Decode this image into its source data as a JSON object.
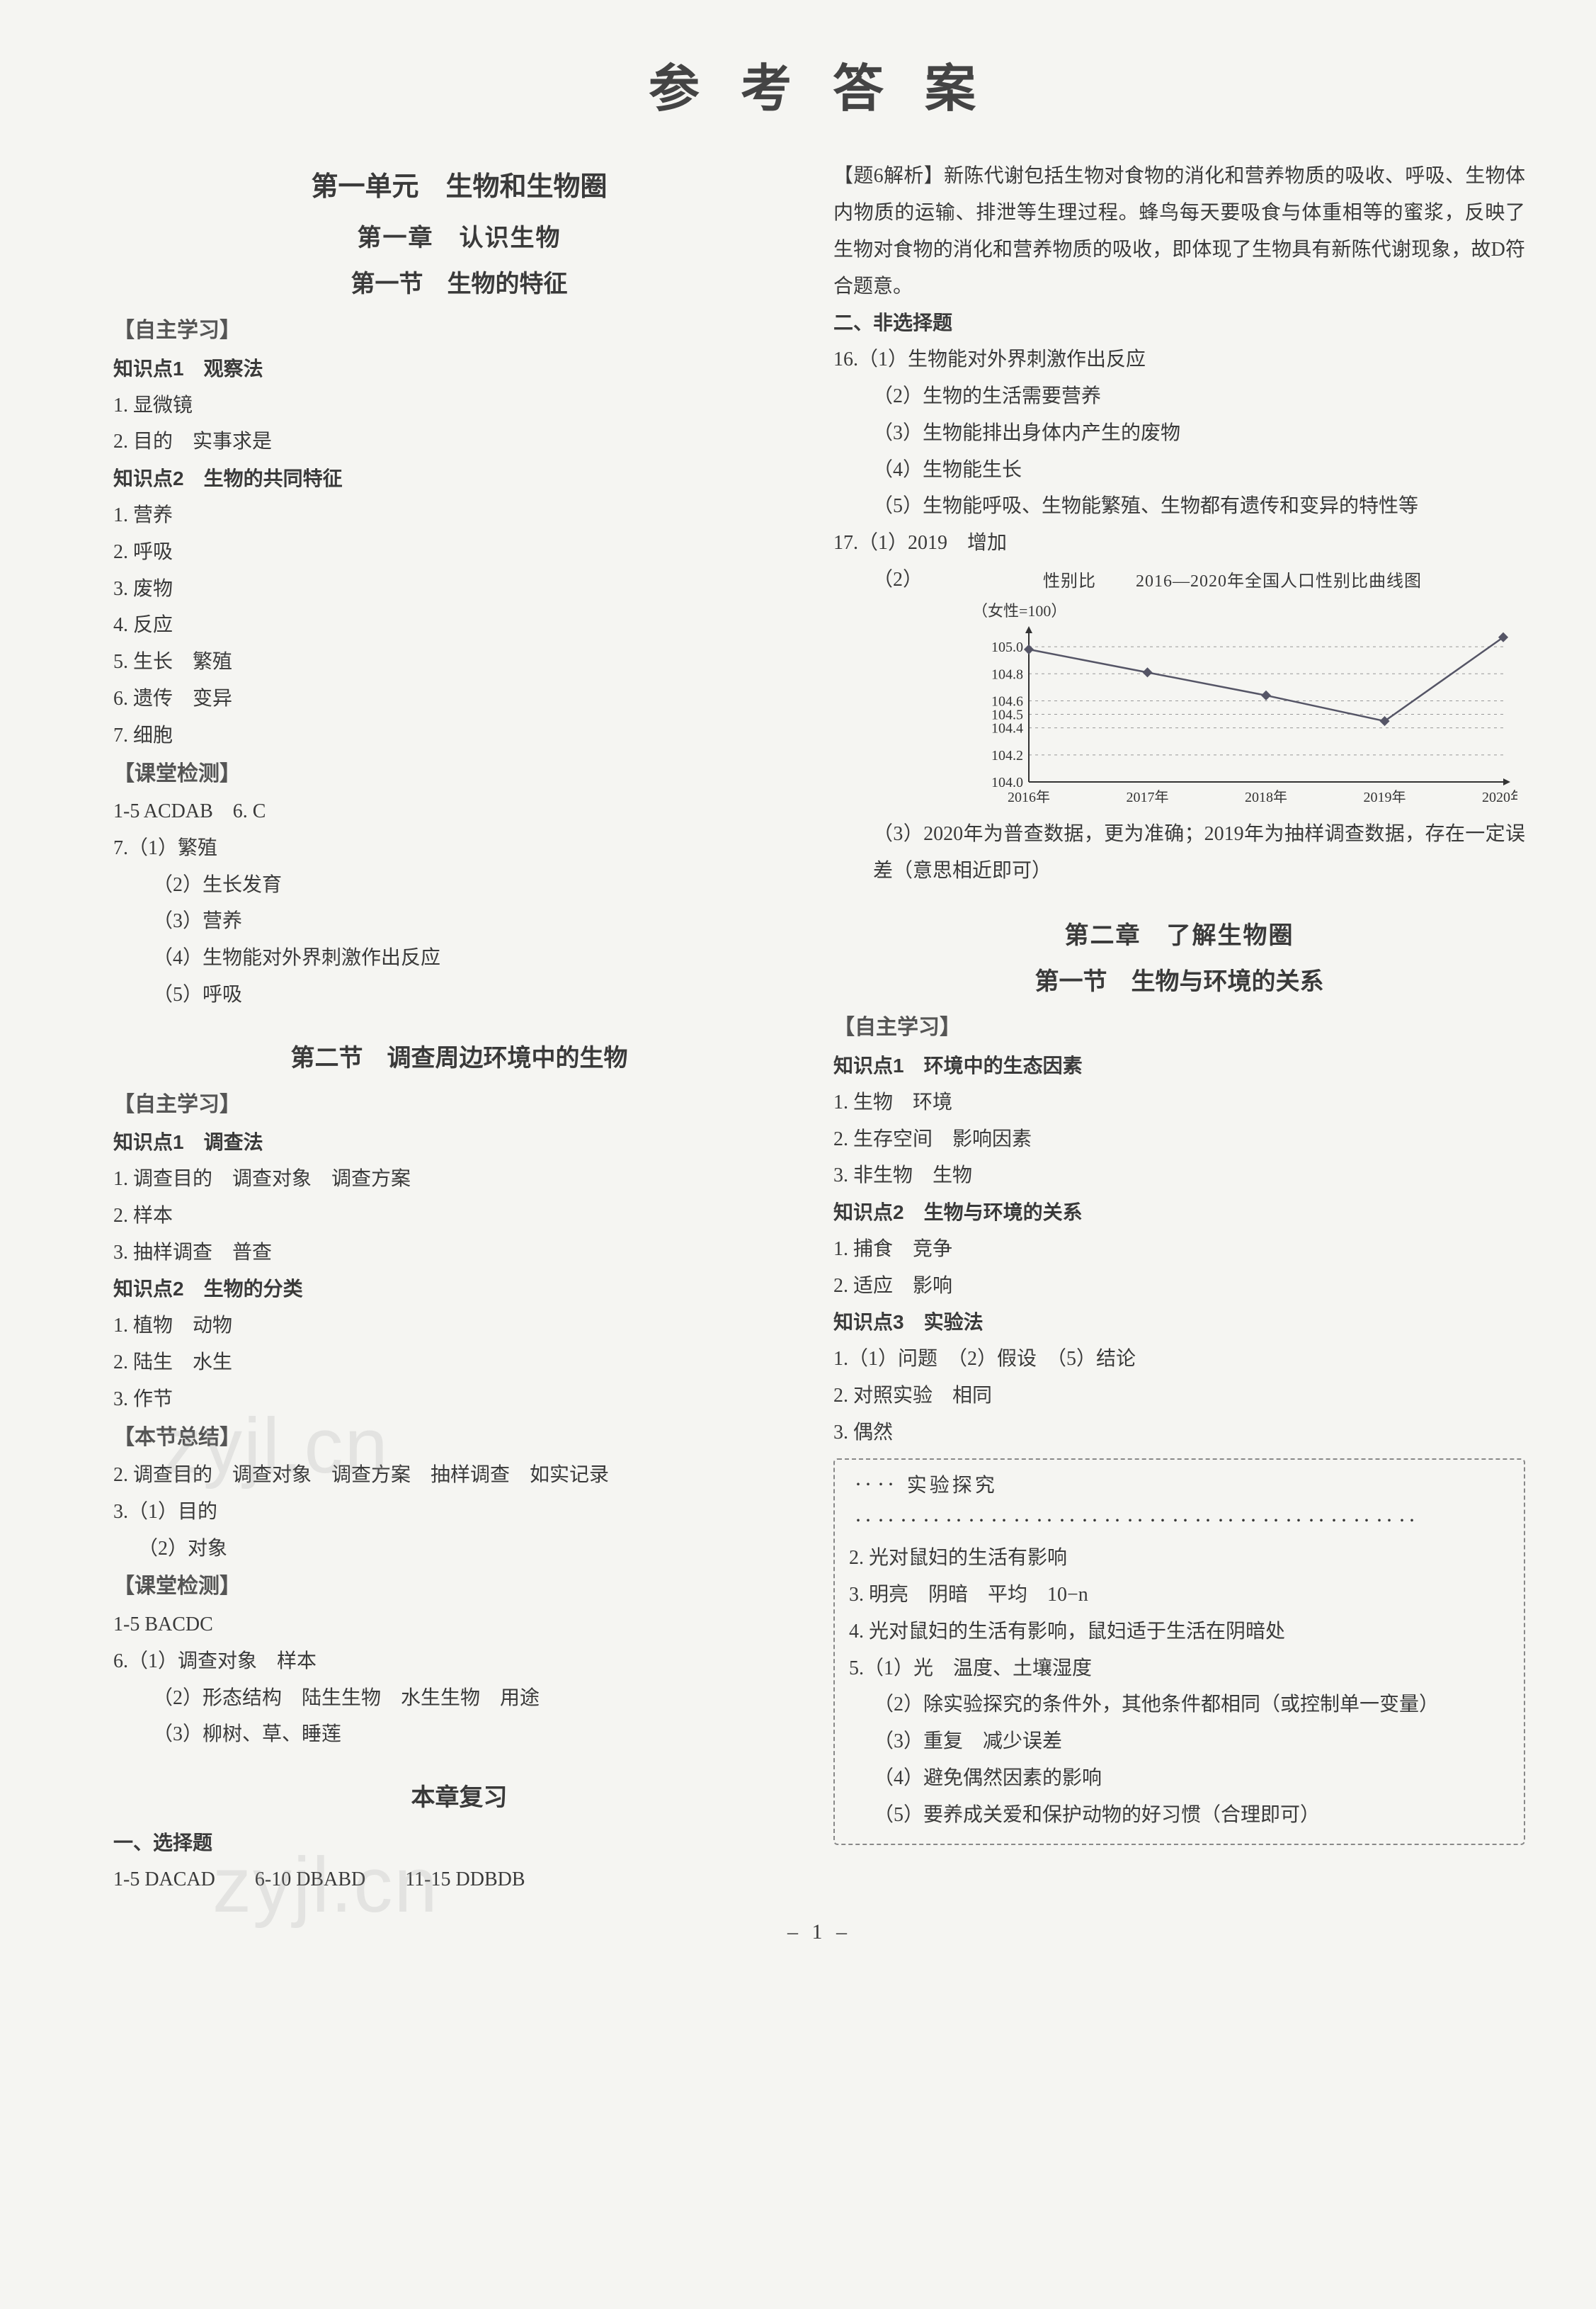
{
  "title": "参 考 答 案",
  "pageNum": "– 1 –",
  "left": {
    "unit": "第一单元　生物和生物圈",
    "chapter": "第一章　认识生物",
    "section1": "第一节　生物的特征",
    "zzxx": "【自主学习】",
    "kp1": "知识点1　观察法",
    "kp1_items": [
      "1. 显微镜",
      "2. 目的　实事求是"
    ],
    "kp2": "知识点2　生物的共同特征",
    "kp2_items": [
      "1. 营养",
      "2. 呼吸",
      "3. 废物",
      "4. 反应",
      "5. 生长　繁殖",
      "6. 遗传　变异",
      "7. 细胞"
    ],
    "ktjc": "【课堂检测】",
    "ktjc_ans1": "1-5 ACDAB　6. C",
    "q7": "7.（1）繁殖",
    "q7_sub": [
      "（2）生长发育",
      "（3）营养",
      "（4）生物能对外界刺激作出反应",
      "（5）呼吸"
    ],
    "section2": "第二节　调查周边环境中的生物",
    "zzxx2": "【自主学习】",
    "s2_kp1": "知识点1　调查法",
    "s2_kp1_items": [
      "1. 调查目的　调查对象　调查方案",
      "2. 样本",
      "3. 抽样调查　普查"
    ],
    "s2_kp2": "知识点2　生物的分类",
    "s2_kp2_items": [
      "1. 植物　动物",
      "2. 陆生　水生",
      "3. 作节"
    ],
    "bjzj": "【本节总结】",
    "bjzj_items": [
      "2. 调查目的　调查对象　调查方案　抽样调查　如实记录",
      "3.（1）目的",
      "　 （2）对象"
    ],
    "ktjc2": "【课堂检测】",
    "ktjc2_ans": "1-5 BACDC",
    "q6": "6.（1）调查对象　样本",
    "q6_sub": [
      "（2）形态结构　陆生生物　水生生物　用途",
      "（3）柳树、草、睡莲"
    ],
    "review": "本章复习",
    "mc": "一、选择题",
    "mc_ans": "1-5 DACAD　　6-10 DBABD　　11-15 DDBDB"
  },
  "right": {
    "t6": "【题6解析】新陈代谢包括生物对食物的消化和营养物质的吸收、呼吸、生物体内物质的运输、排泄等生理过程。蜂鸟每天要吸食与体重相等的蜜浆，反映了生物对食物的消化和营养物质的吸收，即体现了生物具有新陈代谢现象，故D符合题意。",
    "nmc": "二、非选择题",
    "q16": "16.（1）生物能对外界刺激作出反应",
    "q16_sub": [
      "（2）生物的生活需要营养",
      "（3）生物能排出身体内产生的废物",
      "（4）生物能生长",
      "（5）生物能呼吸、生物能繁殖、生物都有遗传和变异的特性等"
    ],
    "q17a": "17.（1）2019　增加",
    "q17b": "（2）",
    "chart": {
      "title": "2016—2020年全国人口性别比曲线图",
      "ylabel1": "性别比",
      "ylabel2": "（女性=100）",
      "xcats": [
        "2016年",
        "2017年",
        "2018年",
        "2019年",
        "2020年"
      ],
      "yticks": [
        104.0,
        104.2,
        104.4,
        104.5,
        104.6,
        104.8,
        105.0
      ],
      "values": [
        104.98,
        104.81,
        104.64,
        104.45,
        105.07
      ],
      "ylim": [
        104.0,
        105.1
      ],
      "line_color": "#556",
      "marker_color": "#556",
      "grid_color": "#999",
      "axis_color": "#333",
      "bg": "#f5f5f2"
    },
    "q17c": "（3）2020年为普查数据，更为准确；2019年为抽样调查数据，存在一定误差（意思相近即可）",
    "chapter2": "第二章　了解生物圈",
    "section21": "第一节　生物与环境的关系",
    "zzxx": "【自主学习】",
    "kp1": "知识点1　环境中的生态因素",
    "kp1_items": [
      "1. 生物　环境",
      "2. 生存空间　影响因素",
      "3. 非生物　生物"
    ],
    "kp2": "知识点2　生物与环境的关系",
    "kp2_items": [
      "1. 捕食　竞争",
      "2. 适应　影响"
    ],
    "kp3": "知识点3　实验法",
    "kp3_items": [
      "1.（1）问题　（2）假设　（5）结论",
      "2. 对照实验　相同",
      "3. 偶然"
    ],
    "box_title": "实验探究",
    "box_items": [
      "2. 光对鼠妇的生活有影响",
      "3. 明亮　阴暗　平均　10−n",
      "4. 光对鼠妇的生活有影响，鼠妇适于生活在阴暗处",
      "5.（1）光　温度、土壤湿度",
      "　 （2）除实验探究的条件外，其他条件都相同（或控制单一变量）",
      "　 （3）重复　减少误差",
      "　 （4）避免偶然因素的影响",
      "　 （5）要养成关爱和保护动物的好习惯（合理即可）"
    ]
  }
}
